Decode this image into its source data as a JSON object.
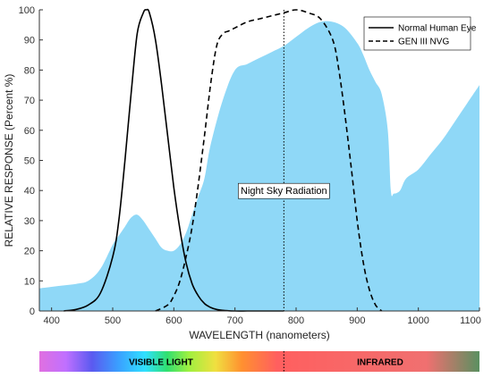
{
  "chart_data": {
    "type": "line",
    "title": "",
    "xlabel": "WAVELENGTH (nanometers)",
    "ylabel": "RELATIVE RESPONSE (Percent %)",
    "xlim": [
      380,
      1100
    ],
    "ylim": [
      0,
      100
    ],
    "xticks": [
      400,
      500,
      600,
      700,
      800,
      900,
      1000,
      1100
    ],
    "yticks": [
      0,
      10,
      20,
      30,
      40,
      50,
      60,
      70,
      80,
      90,
      100
    ],
    "grid": false,
    "legend_position": "top-right",
    "series": [
      {
        "name": "Normal Human Eye",
        "style": "solid",
        "color": "#000000",
        "x": [
          420,
          440,
          460,
          480,
          500,
          510,
          520,
          530,
          540,
          550,
          555,
          560,
          570,
          580,
          590,
          600,
          610,
          620,
          630,
          640,
          650,
          660,
          670,
          680,
          700,
          720,
          740,
          780
        ],
        "y": [
          0,
          0.5,
          2,
          6,
          18,
          30,
          50,
          72,
          92,
          99,
          100,
          99,
          90,
          75,
          58,
          41,
          27,
          16,
          9,
          5,
          2.5,
          1.2,
          0.5,
          0.2,
          0,
          0,
          0,
          0
        ]
      },
      {
        "name": "GEN III NVG",
        "style": "dashed",
        "color": "#000000",
        "x": [
          570,
          590,
          600,
          610,
          620,
          630,
          640,
          650,
          660,
          670,
          680,
          690,
          700,
          720,
          740,
          760,
          780,
          800,
          820,
          840,
          860,
          870,
          880,
          890,
          900,
          910,
          920,
          930,
          940
        ],
        "y": [
          0,
          2,
          5,
          10,
          18,
          28,
          42,
          58,
          75,
          88,
          92,
          93,
          94,
          96,
          97,
          98,
          99,
          100,
          99,
          97,
          90,
          80,
          65,
          48,
          30,
          16,
          7,
          2,
          0
        ]
      },
      {
        "name": "Night Sky Radiation",
        "style": "area",
        "color": "#8fd8f7",
        "x": [
          380,
          400,
          420,
          440,
          460,
          480,
          500,
          510,
          520,
          530,
          540,
          550,
          560,
          570,
          580,
          590,
          600,
          610,
          620,
          630,
          640,
          650,
          660,
          680,
          700,
          720,
          740,
          760,
          780,
          800,
          820,
          840,
          860,
          880,
          900,
          910,
          920,
          930,
          940,
          950,
          955,
          960,
          970,
          980,
          1000,
          1020,
          1040,
          1060,
          1080,
          1100
        ],
        "y": [
          7.5,
          8,
          8.5,
          9,
          10,
          14,
          22,
          25,
          28,
          31,
          32,
          30,
          27,
          24,
          21,
          20,
          20,
          22,
          26,
          32,
          38,
          44,
          55,
          70,
          80,
          82,
          84,
          86,
          88,
          91,
          94,
          96,
          96,
          94,
          89,
          85,
          80,
          76,
          72,
          60,
          40,
          39,
          40,
          44,
          47,
          52,
          57,
          63,
          69,
          75
        ]
      }
    ],
    "annotations": [
      {
        "text": "Night Sky Radiation",
        "x": 780,
        "y": 40
      }
    ],
    "reference_lines": [
      {
        "type": "vertical",
        "x": 780,
        "style": "dotted"
      }
    ],
    "spectrum_bar": {
      "labels": [
        "VISIBLE LIGHT",
        "INFRARED"
      ],
      "divider_x": 780
    }
  },
  "colors": {
    "area_fill": "#8fd8f7",
    "axis": "#333333"
  }
}
